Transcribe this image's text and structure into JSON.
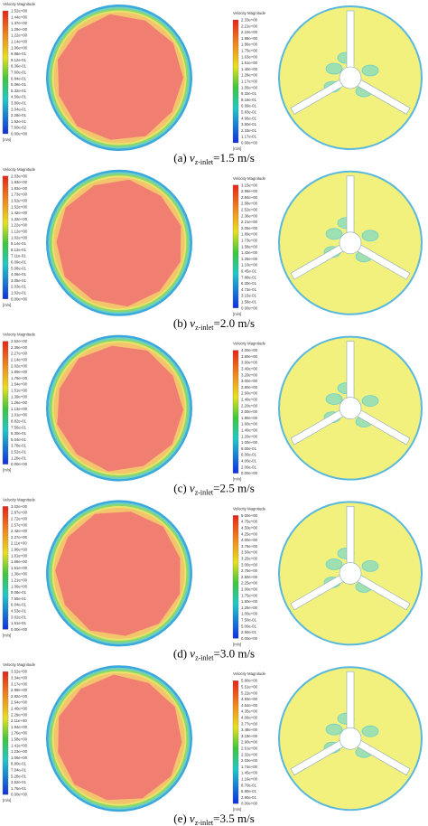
{
  "panels": [
    {
      "left": {
        "title": "Velocity Magnitude",
        "unit": "[m/s]",
        "ticks": [
          "1.52e+00",
          "1.44e+00",
          "1.37e+00",
          "1.29e+00",
          "1.22e+00",
          "1.14e+00",
          "1.06e+00",
          "9.88e-01",
          "9.12e-01",
          "8.36e-01",
          "7.60e-01",
          "6.84e-01",
          "6.08e-01",
          "5.32e-01",
          "4.56e-01",
          "3.80e-01",
          "3.04e-01",
          "2.28e-01",
          "1.52e-01",
          "7.60e-02",
          "0.00e+00"
        ]
      },
      "right": {
        "title": "Velocity Magnitude",
        "unit": "[m/s]",
        "ticks": [
          "2.33e+00",
          "2.21e+00",
          "2.10e+00",
          "1.98e+00",
          "1.86e+00",
          "1.75e+00",
          "1.63e+00",
          "1.51e+00",
          "1.40e+00",
          "1.28e+00",
          "1.17e+00",
          "1.05e+00",
          "9.32e-01",
          "8.16e-01",
          "6.99e-01",
          "5.83e-01",
          "4.66e-01",
          "3.50e-01",
          "2.33e-01",
          "1.17e-01",
          "0.00e+00"
        ]
      },
      "caption": {
        "prefix": "(a) ",
        "symbol": "v",
        "subscript": "z-inlet",
        "suffix": "=1.5 m/s"
      }
    },
    {
      "left": {
        "title": "Velocity Magnitude",
        "unit": "[m/s]",
        "ticks": [
          "2.03e+00",
          "1.93e+00",
          "1.83e+00",
          "1.73e+00",
          "1.62e+00",
          "1.52e+00",
          "1.42e+00",
          "1.32e+00",
          "1.22e+00",
          "1.12e+00",
          "1.02e+00",
          "9.14e-01",
          "8.12e-01",
          "7.11e-01",
          "6.09e-01",
          "5.08e-01",
          "4.06e-01",
          "3.05e-01",
          "2.03e-01",
          "1.02e-01",
          "0.00e+00"
        ]
      },
      "right": {
        "title": "Velocity Magnitude",
        "unit": "[m/s]",
        "ticks": [
          "3.15e+00",
          "2.99e+00",
          "2.84e+00",
          "2.68e+00",
          "2.52e+00",
          "2.36e+00",
          "2.21e+00",
          "2.05e+00",
          "1.89e+00",
          "1.73e+00",
          "1.58e+00",
          "1.42e+00",
          "1.26e+00",
          "1.10e+00",
          "9.45e-01",
          "7.88e-01",
          "6.30e-01",
          "4.73e-01",
          "3.15e-01",
          "1.58e-01",
          "0.00e+00"
        ]
      },
      "caption": {
        "prefix": "(b) ",
        "symbol": "v",
        "subscript": "z-inlet",
        "suffix": "=2.0 m/s"
      }
    },
    {
      "left": {
        "title": "Velocity Magnitude",
        "unit": "[m/s]",
        "ticks": [
          "2.52e+00",
          "2.39e+00",
          "2.27e+00",
          "2.14e+00",
          "2.02e+00",
          "1.89e+00",
          "1.76e+00",
          "1.64e+00",
          "1.51e+00",
          "1.39e+00",
          "1.26e+00",
          "1.13e+00",
          "1.01e+00",
          "8.82e-01",
          "7.56e-01",
          "6.30e-01",
          "5.04e-01",
          "3.78e-01",
          "2.52e-01",
          "1.26e-01",
          "0.00e+00"
        ]
      },
      "right": {
        "title": "Velocity Magnitude",
        "unit": "[m/s]",
        "ticks": [
          "4.00e+00",
          "3.80e+00",
          "3.60e+00",
          "3.40e+00",
          "3.20e+00",
          "3.00e+00",
          "2.80e+00",
          "2.60e+00",
          "2.40e+00",
          "2.20e+00",
          "2.00e+00",
          "1.80e+00",
          "1.60e+00",
          "1.40e+00",
          "1.20e+00",
          "1.00e+00",
          "8.00e-01",
          "6.00e-01",
          "4.00e-01",
          "2.00e-01",
          "0.00e+00"
        ]
      },
      "caption": {
        "prefix": "(c) ",
        "symbol": "v",
        "subscript": "z-inlet",
        "suffix": "=2.5 m/s"
      }
    },
    {
      "left": {
        "title": "Velocity Magnitude",
        "unit": "[m/s]",
        "ticks": [
          "3.02e+00",
          "2.87e+00",
          "2.72e+00",
          "2.57e+00",
          "2.42e+00",
          "2.27e+00",
          "2.11e+00",
          "1.96e+00",
          "1.81e+00",
          "1.66e+00",
          "1.51e+00",
          "1.36e+00",
          "1.21e+00",
          "1.06e+00",
          "9.06e-01",
          "7.55e-01",
          "6.04e-01",
          "4.53e-01",
          "3.02e-01",
          "1.51e-01",
          "0.00e+00"
        ]
      },
      "right": {
        "title": "Velocity Magnitude",
        "unit": "[m/s]",
        "ticks": [
          "5.00e+00",
          "4.75e+00",
          "4.50e+00",
          "4.25e+00",
          "4.00e+00",
          "3.75e+00",
          "3.50e+00",
          "3.25e+00",
          "3.00e+00",
          "2.75e+00",
          "2.50e+00",
          "2.25e+00",
          "2.00e+00",
          "1.75e+00",
          "1.50e+00",
          "1.25e+00",
          "1.00e+00",
          "7.50e-01",
          "5.00e-01",
          "2.50e-01",
          "0.00e+00"
        ]
      },
      "caption": {
        "prefix": "(d) ",
        "symbol": "v",
        "subscript": "z-inlet",
        "suffix": "=3.0 m/s"
      }
    },
    {
      "left": {
        "title": "Velocity Magnitude",
        "unit": "[m/s]",
        "ticks": [
          "3.52e+00",
          "3.34e+00",
          "3.17e+00",
          "2.99e+00",
          "2.82e+00",
          "2.64e+00",
          "2.46e+00",
          "2.29e+00",
          "2.11e+00",
          "1.94e+00",
          "1.76e+00",
          "1.58e+00",
          "1.41e+00",
          "1.23e+00",
          "1.06e+00",
          "8.80e-01",
          "7.04e-01",
          "5.28e-01",
          "3.52e-01",
          "1.76e-01",
          "0.00e+00"
        ]
      },
      "right": {
        "title": "Velocity Magnitude",
        "unit": "[m/s]",
        "ticks": [
          "5.80e+00",
          "5.51e+00",
          "5.22e+00",
          "4.93e+00",
          "4.64e+00",
          "4.35e+00",
          "4.06e+00",
          "3.77e+00",
          "3.48e+00",
          "3.19e+00",
          "2.90e+00",
          "2.61e+00",
          "2.32e+00",
          "2.03e+00",
          "1.74e+00",
          "1.45e+00",
          "1.16e+00",
          "8.70e-01",
          "5.80e-01",
          "2.90e-01",
          "0.00e+00"
        ]
      },
      "caption": {
        "prefix": "(e) ",
        "symbol": "v",
        "subscript": "z-inlet",
        "suffix": "=3.5 m/s"
      }
    }
  ]
}
